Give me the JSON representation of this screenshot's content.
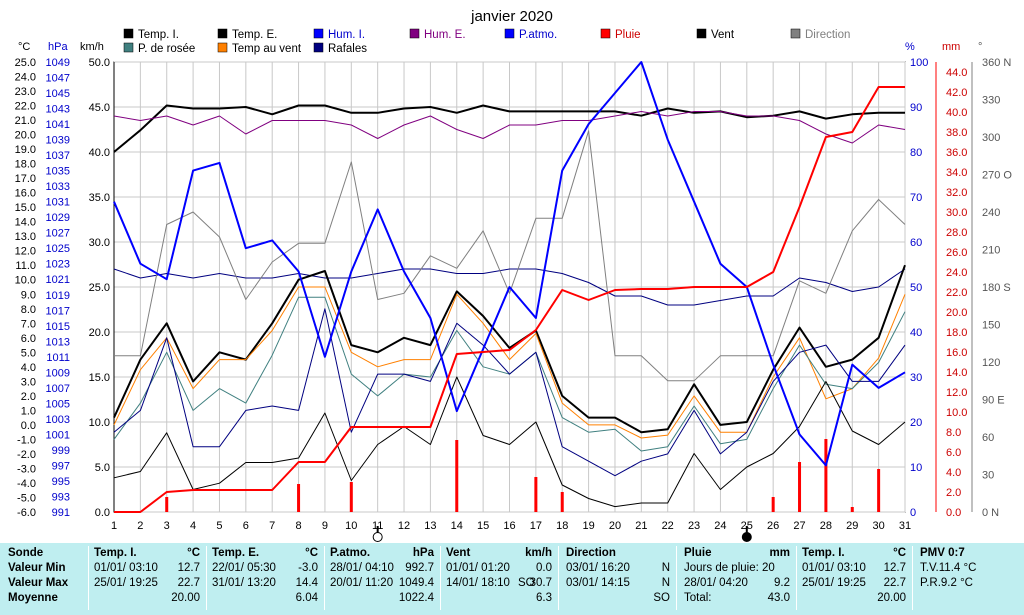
{
  "chart_data": {
    "type": "line",
    "title": "janvier 2020",
    "x": [
      1,
      2,
      3,
      4,
      5,
      6,
      7,
      8,
      9,
      10,
      11,
      12,
      13,
      14,
      15,
      16,
      17,
      18,
      19,
      20,
      21,
      22,
      23,
      24,
      25,
      26,
      27,
      28,
      29,
      30,
      31
    ],
    "axes": {
      "temp_c": {
        "label": "°C",
        "range": [
          -6,
          25
        ],
        "ticks": [
          "25.0",
          "24.0",
          "23.0",
          "22.0",
          "21.0",
          "20.0",
          "19.0",
          "18.0",
          "17.0",
          "16.0",
          "15.0",
          "14.0",
          "13.0",
          "12.0",
          "11.0",
          "10.0",
          "9.0",
          "8.0",
          "7.0",
          "6.0",
          "5.0",
          "4.0",
          "3.0",
          "2.0",
          "1.0",
          "0.0",
          "-1.0",
          "-2.0",
          "-3.0",
          "-4.0",
          "-5.0",
          "-6.0"
        ]
      },
      "pressure_hpa": {
        "label": "hPa",
        "range": [
          991,
          1049
        ],
        "ticks": [
          "1049",
          "1047",
          "1045",
          "1043",
          "1041",
          "1039",
          "1037",
          "1035",
          "1033",
          "1031",
          "1029",
          "1027",
          "1025",
          "1023",
          "1021",
          "1019",
          "1017",
          "1015",
          "1013",
          "1011",
          "1009",
          "1007",
          "1005",
          "1003",
          "1001",
          "999",
          "997",
          "995",
          "993",
          "991"
        ]
      },
      "wind_kmh": {
        "label": "km/h",
        "range": [
          0,
          50
        ],
        "ticks": [
          "50.0",
          "45.0",
          "40.0",
          "35.0",
          "30.0",
          "25.0",
          "20.0",
          "15.0",
          "10.0",
          "5.0",
          "0.0"
        ]
      },
      "humidity_pct": {
        "label": "%",
        "range": [
          0,
          100
        ],
        "ticks": [
          "100",
          "90",
          "80",
          "70",
          "60",
          "50",
          "40",
          "30",
          "20",
          "10",
          "0"
        ]
      },
      "rain_mm": {
        "label": "mm",
        "range": [
          0,
          45
        ],
        "ticks": [
          "44.0",
          "42.0",
          "40.0",
          "38.0",
          "36.0",
          "34.0",
          "32.0",
          "30.0",
          "28.0",
          "26.0",
          "24.0",
          "22.0",
          "20.0",
          "18.0",
          "16.0",
          "14.0",
          "12.0",
          "10.0",
          "8.0",
          "6.0",
          "4.0",
          "2.0",
          "0.0"
        ]
      },
      "direction_deg": {
        "label": "°",
        "range": [
          0,
          360
        ],
        "ticks": [
          "360 N",
          "330",
          "300",
          "270 O",
          "240",
          "210",
          "180 S",
          "150",
          "120",
          "90 E",
          "60",
          "30",
          "0 N"
        ]
      }
    },
    "legend": [
      {
        "name": "Temp. I.",
        "color": "#000000"
      },
      {
        "name": "Temp. E.",
        "color": "#000000"
      },
      {
        "name": "Hum. I.",
        "color": "#0000ff"
      },
      {
        "name": "Hum. E.",
        "color": "#800080"
      },
      {
        "name": "P.atmo.",
        "color": "#0000ff"
      },
      {
        "name": "Pluie",
        "color": "#ff0000"
      },
      {
        "name": "Vent",
        "color": "#000000"
      },
      {
        "name": "Direction",
        "color": "#808080"
      },
      {
        "name": "P. de rosée",
        "color": "#408080"
      },
      {
        "name": "Temp au vent",
        "color": "#ff8000"
      },
      {
        "name": "Rafales",
        "color": "#000080"
      }
    ],
    "series": [
      {
        "name": "Temp. I.",
        "axis": "temp_c",
        "color": "#000000",
        "width": 2,
        "values": [
          18.8,
          20.3,
          22.0,
          21.8,
          21.8,
          21.9,
          21.4,
          22.0,
          22.0,
          21.5,
          21.5,
          21.8,
          21.9,
          21.5,
          22.0,
          21.6,
          21.6,
          21.6,
          21.6,
          21.6,
          21.3,
          21.8,
          21.5,
          21.6,
          21.2,
          21.3,
          21.6,
          21.1,
          21.4,
          21.5,
          21.5
        ]
      },
      {
        "name": "Hum. E.",
        "axis": "humidity_pct",
        "color": "#800080",
        "width": 1,
        "values": [
          88,
          87,
          88,
          86,
          88,
          84,
          87,
          87,
          87,
          86,
          83,
          86,
          88,
          85,
          83,
          86,
          86,
          87,
          87,
          88,
          89,
          88,
          89,
          89,
          88,
          88,
          87,
          84,
          82,
          86,
          85
        ]
      },
      {
        "name": "Hum. I.",
        "axis": "humidity_pct",
        "color": "#000080",
        "width": 1,
        "values": [
          54,
          52,
          53,
          52,
          53,
          52,
          52,
          53,
          52,
          52,
          53,
          54,
          54,
          53,
          53,
          54,
          54,
          53,
          51,
          48,
          48,
          46,
          46,
          47,
          48,
          48,
          52,
          51,
          49,
          50,
          54
        ]
      },
      {
        "name": "Direction",
        "axis": "direction_deg",
        "color": "#808080",
        "width": 1,
        "values": [
          125,
          125,
          230,
          240,
          220,
          170,
          200,
          215,
          215,
          280,
          170,
          175,
          205,
          195,
          225,
          175,
          235,
          235,
          305,
          125,
          125,
          105,
          105,
          125,
          125,
          125,
          185,
          175,
          225,
          250,
          230
        ]
      },
      {
        "name": "Temp. E.",
        "axis": "temp_c",
        "color": "#000000",
        "width": 2,
        "values": [
          0.5,
          4.5,
          7.0,
          3.0,
          5.0,
          4.5,
          7.0,
          10.0,
          10.6,
          5.5,
          5.0,
          6.0,
          5.5,
          9.2,
          7.5,
          5.3,
          6.5,
          2.0,
          0.5,
          0.5,
          -0.5,
          -0.3,
          2.8,
          0.0,
          0.2,
          3.8,
          6.7,
          4.0,
          4.5,
          6.0,
          11.0
        ]
      },
      {
        "name": "Temp au vent",
        "axis": "temp_c",
        "color": "#ff8000",
        "width": 1,
        "values": [
          0.0,
          3.8,
          6.0,
          2.5,
          4.5,
          4.5,
          6.5,
          9.5,
          9.5,
          5.0,
          4.0,
          4.5,
          4.5,
          9.0,
          7.0,
          4.5,
          6.3,
          1.5,
          0.0,
          0.0,
          -0.9,
          -0.7,
          2.0,
          -0.5,
          -0.5,
          3.3,
          6.0,
          1.8,
          2.5,
          4.6,
          9.0
        ]
      },
      {
        "name": "P. de rosée",
        "axis": "temp_c",
        "color": "#408080",
        "width": 1,
        "values": [
          -1.0,
          1.5,
          5.0,
          1.0,
          2.5,
          1.5,
          4.8,
          8.8,
          8.8,
          3.5,
          2.0,
          3.5,
          3.3,
          6.5,
          4.0,
          3.5,
          5.0,
          0.5,
          -0.5,
          -0.3,
          -1.8,
          -1.5,
          1.3,
          -1.3,
          -1.0,
          2.5,
          5.5,
          2.8,
          2.5,
          4.3,
          7.8
        ]
      },
      {
        "name": "Rafales",
        "axis": "temp_c",
        "color": "#000080",
        "width": 1,
        "values": [
          -0.5,
          1.0,
          6.0,
          -1.5,
          -1.5,
          1.0,
          1.3,
          1.0,
          8.0,
          -0.5,
          3.5,
          3.5,
          3.0,
          7.0,
          5.5,
          3.5,
          5.0,
          -1.5,
          -2.5,
          -3.5,
          -2.5,
          -2.0,
          1.0,
          -2.0,
          -0.5,
          3.0,
          5.0,
          5.5,
          3.0,
          3.0,
          5.5
        ]
      },
      {
        "name": "Vent",
        "axis": "wind_kmh",
        "color": "#000000",
        "width": 1,
        "values": [
          3.8,
          4.5,
          8.8,
          2.5,
          3.2,
          5.5,
          5.5,
          6.0,
          11.0,
          3.5,
          7.5,
          9.5,
          7.5,
          15.0,
          8.5,
          7.5,
          10.0,
          3.0,
          1.5,
          0.6,
          1.0,
          1.0,
          6.5,
          2.5,
          5.0,
          6.5,
          9.5,
          14.5,
          9.0,
          7.5,
          10.0
        ]
      },
      {
        "name": "P.atmo.",
        "axis": "pressure_hpa",
        "color": "#0000ff",
        "width": 2,
        "values": [
          1031,
          1023,
          1021,
          1035,
          1036,
          1025,
          1026,
          1022,
          1011,
          1022,
          1030,
          1022,
          1016,
          1004,
          1012,
          1020,
          1016,
          1035,
          1041,
          1045,
          1049,
          1039,
          1031,
          1023,
          1020,
          1010,
          1001,
          997,
          1010,
          1007,
          1009
        ]
      },
      {
        "name": "Pluie",
        "axis": "rain_mm",
        "color": "#ff0000",
        "width": 2,
        "values": [
          0.0,
          0.0,
          2.0,
          2.2,
          2.2,
          2.2,
          2.2,
          5.0,
          5.0,
          8.5,
          8.5,
          8.5,
          8.5,
          15.8,
          16.0,
          16.2,
          18.2,
          22.2,
          21.2,
          22.2,
          22.3,
          22.3,
          22.5,
          22.5,
          22.5,
          24.0,
          30.5,
          37.5,
          38.0,
          42.5,
          42.5
        ]
      },
      {
        "name": "Pluie quotidienne",
        "axis": "rain_mm",
        "color": "#ff0000",
        "type": "bar",
        "values": [
          0.0,
          0.0,
          1.5,
          0.0,
          0.0,
          0.0,
          0.0,
          2.8,
          0.0,
          3.0,
          0.0,
          0.0,
          0.0,
          7.2,
          0.0,
          0.0,
          3.5,
          2.0,
          0.0,
          0.0,
          0.0,
          0.0,
          0.0,
          0.0,
          0.0,
          1.5,
          5.0,
          7.3,
          0.5,
          4.3,
          0.0
        ]
      }
    ],
    "moon_markers": [
      {
        "day": 11,
        "phase": "new"
      },
      {
        "day": 25,
        "phase": "full"
      }
    ],
    "grid": true
  },
  "stats": {
    "sonde": {
      "label": "Sonde",
      "min": "Valeur Min",
      "max": "Valeur Max",
      "moy": "Moyenne"
    },
    "temp_i": {
      "title": "Temp. I.",
      "unit": "°C",
      "min_date": "01/01/ 03:10",
      "min_val": "12.7",
      "max_date": "25/01/ 19:25",
      "max_val": "22.7",
      "moy": "20.00"
    },
    "temp_e": {
      "title": "Temp. E.",
      "unit": "°C",
      "min_date": "22/01/ 05:30",
      "min_val": "-3.0",
      "max_date": "31/01/ 13:20",
      "max_val": "14.4",
      "moy": "6.04"
    },
    "patmo": {
      "title": "P.atmo.",
      "unit": "hPa",
      "min_date": "28/01/ 04:10",
      "min_val": "992.7",
      "max_date": "20/01/ 11:20",
      "max_val": "1049.4",
      "moy": "1022.4"
    },
    "vent": {
      "title": "Vent",
      "unit": "km/h",
      "min_date": "01/01/ 01:20",
      "min_val": "0.0",
      "max_date": "14/01/ 18:10",
      "max_extra": "SO",
      "max_val": "30.7",
      "moy": "6.3"
    },
    "direction": {
      "title": "Direction",
      "min_date": "03/01/ 16:20",
      "min_val": "N",
      "max_date": "03/01/ 14:15",
      "max_val": "N",
      "moy": "SO"
    },
    "pluie": {
      "title": "Pluie",
      "unit": "mm",
      "line1": "Jours de pluie: 20",
      "line2_date": "28/01/ 04:20",
      "line2_val": "9.2",
      "line3_label": "Total:",
      "line3_val": "43.0"
    },
    "temp_i2": {
      "title": "Temp. I.",
      "unit": "°C",
      "min_date": "01/01/ 03:10",
      "min_val": "12.7",
      "max_date": "25/01/ 19:25",
      "max_val": "22.7",
      "moy": "20.00"
    },
    "pmv": {
      "title": "PMV 0:7",
      "tv": "T.V.11.4 °C",
      "pr": "P.R.9.2 °C"
    }
  }
}
